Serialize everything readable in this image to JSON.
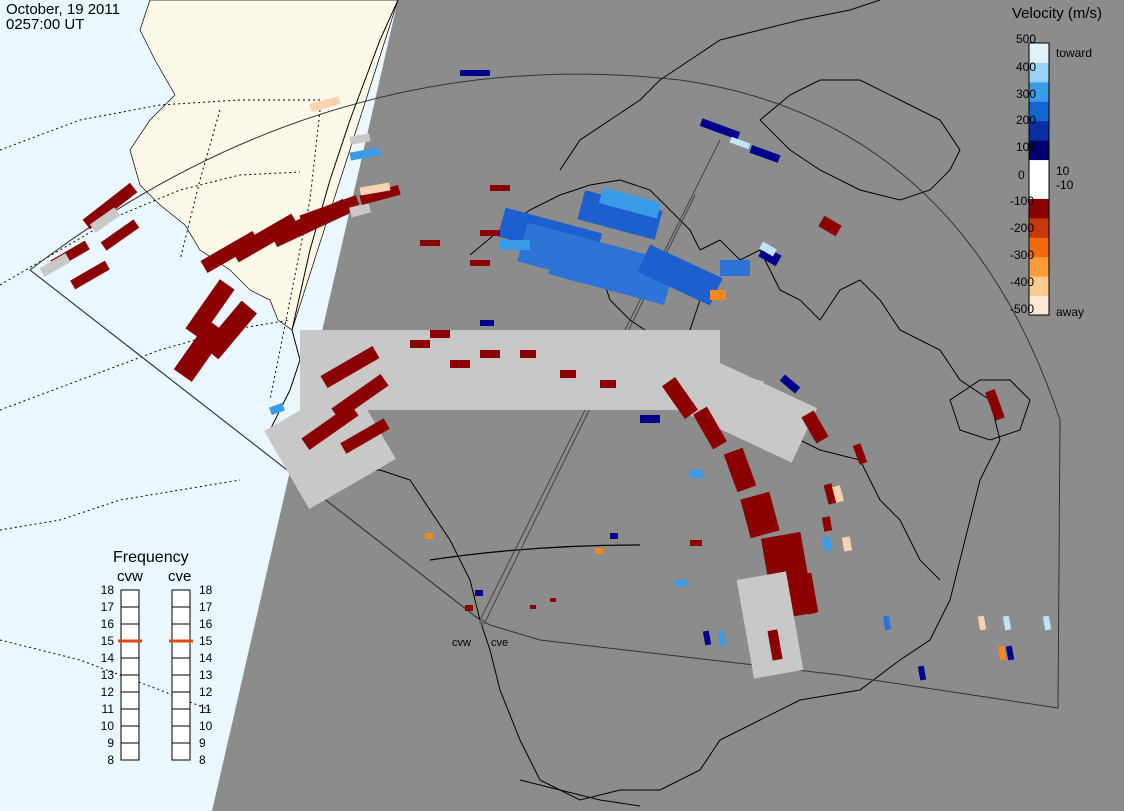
{
  "header": {
    "date": "October, 19 2011",
    "time": "0257:00 UT"
  },
  "colorbar": {
    "title": "Velocity (m/s)",
    "ticks": [
      "500",
      "400",
      "300",
      "200",
      "100",
      "10",
      "0",
      "-10",
      "-100",
      "-200",
      "-300",
      "-400",
      "-500"
    ],
    "top_label": "toward",
    "bottom_label": "away",
    "colors": [
      "#fde8d4",
      "#fec98f",
      "#fc9b3a",
      "#f06a0c",
      "#c8380a",
      "#8b0000",
      "#ffffff",
      "#ffffff",
      "#00006e",
      "#0a2fa0",
      "#1565d0",
      "#3a9be8",
      "#9ad2f7",
      "#dff1fd"
    ]
  },
  "frequency": {
    "title": "Frequency",
    "radars": [
      {
        "name": "cvw",
        "freq": 15
      },
      {
        "name": "cve",
        "freq": 15
      }
    ],
    "scale": [
      "18",
      "17",
      "16",
      "15",
      "14",
      "13",
      "12",
      "11",
      "10",
      "9",
      "8"
    ],
    "marker_color": "#e04a10"
  },
  "sites": [
    "cvw",
    "cve"
  ],
  "map": {
    "night_color": "#8c8c8c",
    "day_ocean_color": "#eaf7fe",
    "day_land_color": "#fbf8e8",
    "lowvel_color": "#c8c8c8"
  }
}
